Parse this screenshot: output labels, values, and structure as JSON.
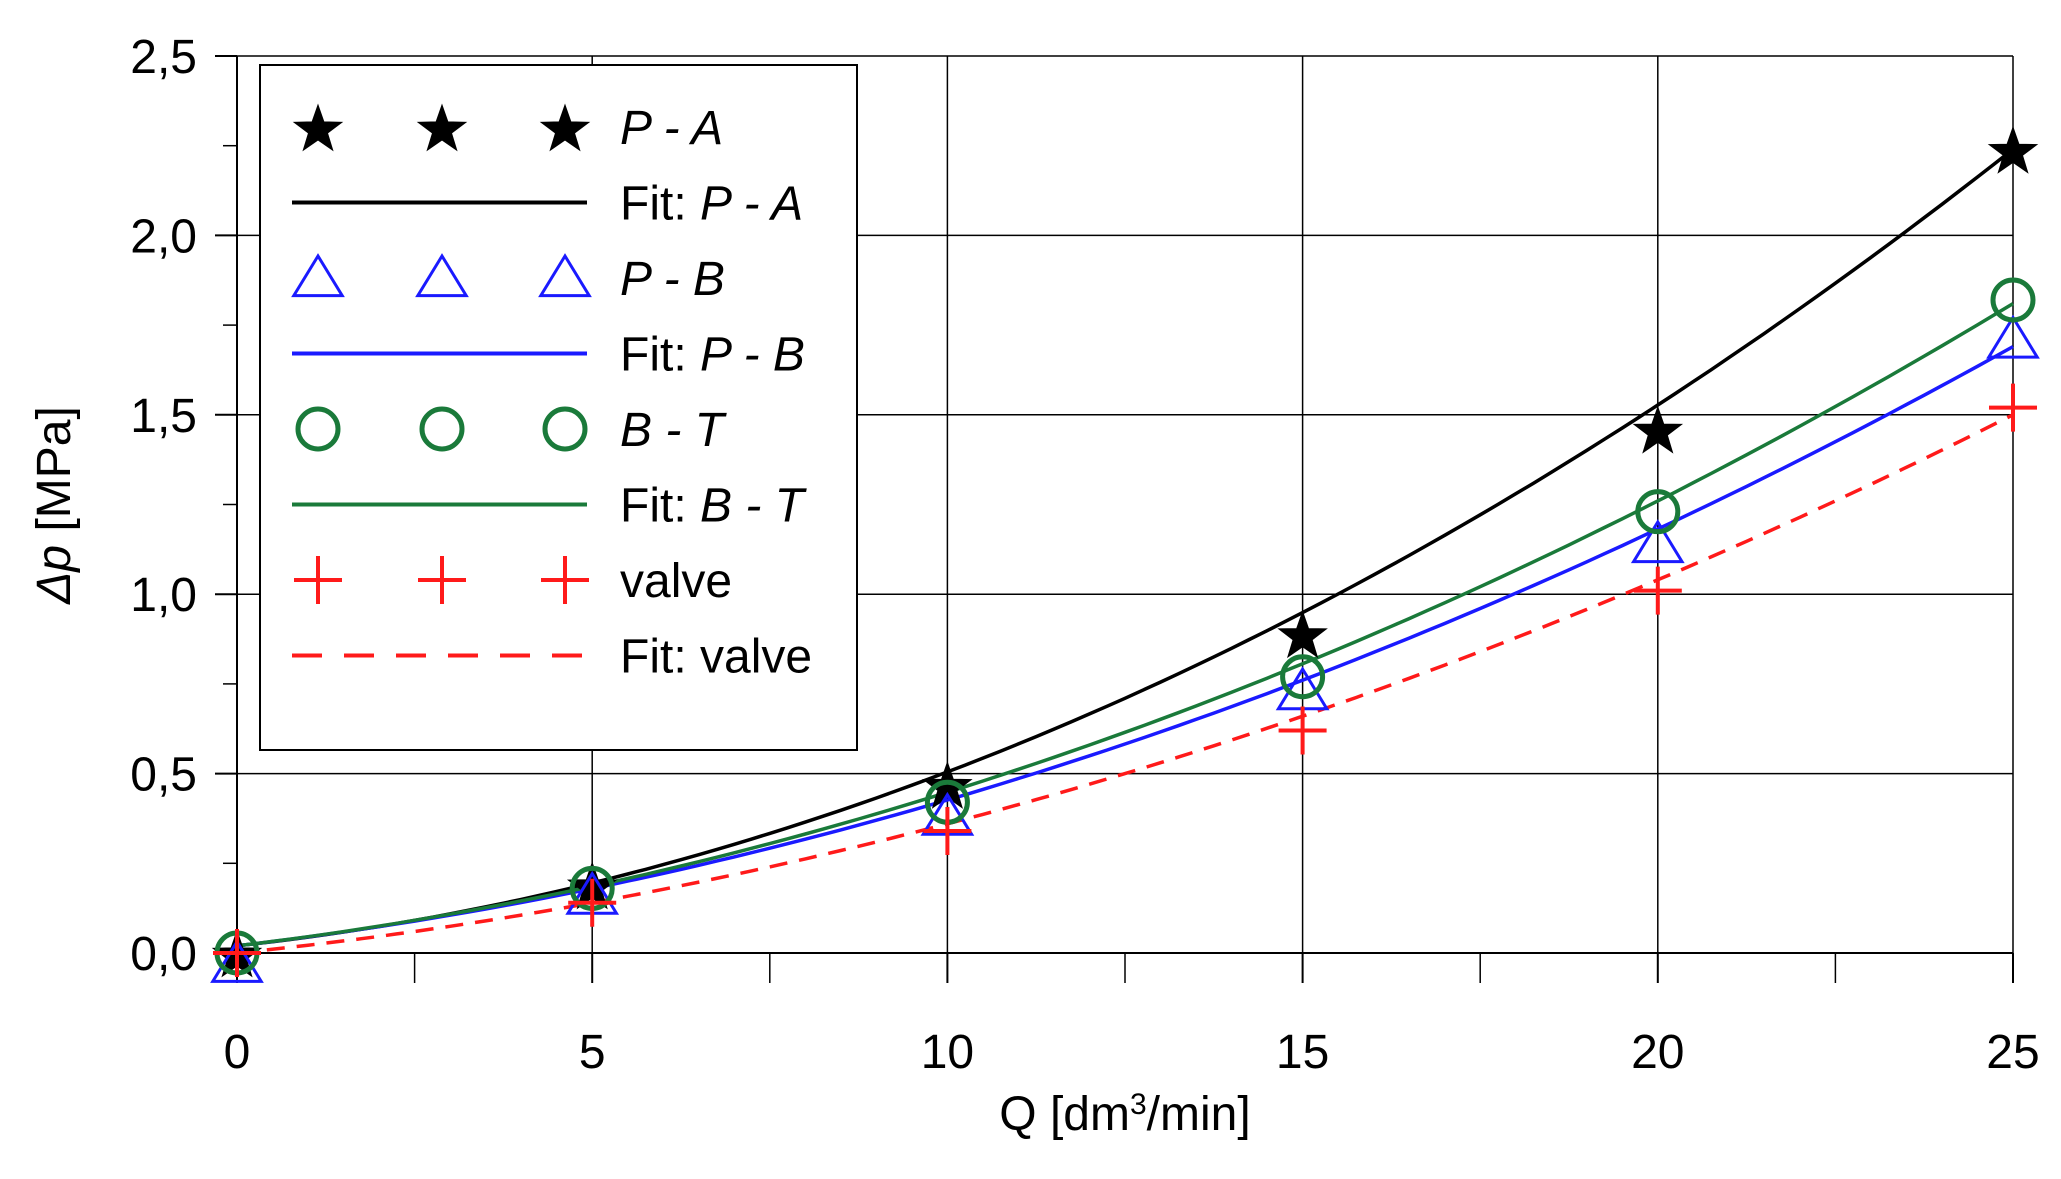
{
  "chart_data": {
    "type": "scatter",
    "xlabel_prefix": "Q [dm",
    "xlabel_sup": "3",
    "xlabel_suffix": "/min]",
    "ylabel_symbol": "Δp",
    "ylabel_unit": " [MPa]",
    "xlim": [
      0,
      25
    ],
    "ylim": [
      0,
      2.5
    ],
    "x_major_ticks": [
      0,
      5,
      10,
      15,
      20,
      25
    ],
    "x_minor_ticks": [
      2.5,
      7.5,
      12.5,
      17.5,
      22.5
    ],
    "y_major_ticks": [
      0,
      0.5,
      1.0,
      1.5,
      2.0,
      2.5
    ],
    "y_minor_ticks": [
      0.25,
      0.75,
      1.25,
      1.75,
      2.25
    ],
    "x_tick_labels": [
      "0",
      "5",
      "10",
      "15",
      "20",
      "25"
    ],
    "y_tick_labels": [
      "0,0",
      "0,5",
      "1,0",
      "1,5",
      "2,0",
      "2,5"
    ],
    "grid": true,
    "legend_position": "top-left",
    "x": [
      0,
      5,
      10,
      15,
      20,
      25
    ],
    "series": [
      {
        "id": "pa",
        "name_italic": "P - A",
        "fit_prefix": "Fit: ",
        "color": "#000000",
        "marker": "star",
        "fit_dash": "solid",
        "values": [
          0.0,
          0.19,
          0.47,
          0.89,
          1.46,
          2.24
        ],
        "fit_coef": [
          0.02,
          0.0216,
          0.002688
        ]
      },
      {
        "id": "pb",
        "name_italic": "P - B",
        "fit_prefix": "Fit: ",
        "color": "#1a1aff",
        "marker": "triangle",
        "fit_dash": "solid",
        "values": [
          -0.03,
          0.16,
          0.38,
          0.73,
          1.14,
          1.71
        ],
        "fit_coef": [
          0.02,
          0.0232,
          0.001744
        ]
      },
      {
        "id": "bt",
        "name_italic": "B - T",
        "fit_prefix": "Fit: ",
        "color": "#1a7a3a",
        "marker": "circle",
        "fit_dash": "solid",
        "values": [
          0.0,
          0.18,
          0.42,
          0.77,
          1.23,
          1.82
        ],
        "fit_coef": [
          0.02,
          0.0236,
          0.00192
        ]
      },
      {
        "id": "valve",
        "name_plain": "valve",
        "fit_prefix": "Fit: ",
        "color": "#ff1a1a",
        "marker": "plus",
        "fit_dash": "dashed",
        "values": [
          0.0,
          0.14,
          0.34,
          0.62,
          1.01,
          1.52
        ],
        "fit_coef": [
          0.0,
          0.02,
          0.0016
        ]
      }
    ]
  }
}
